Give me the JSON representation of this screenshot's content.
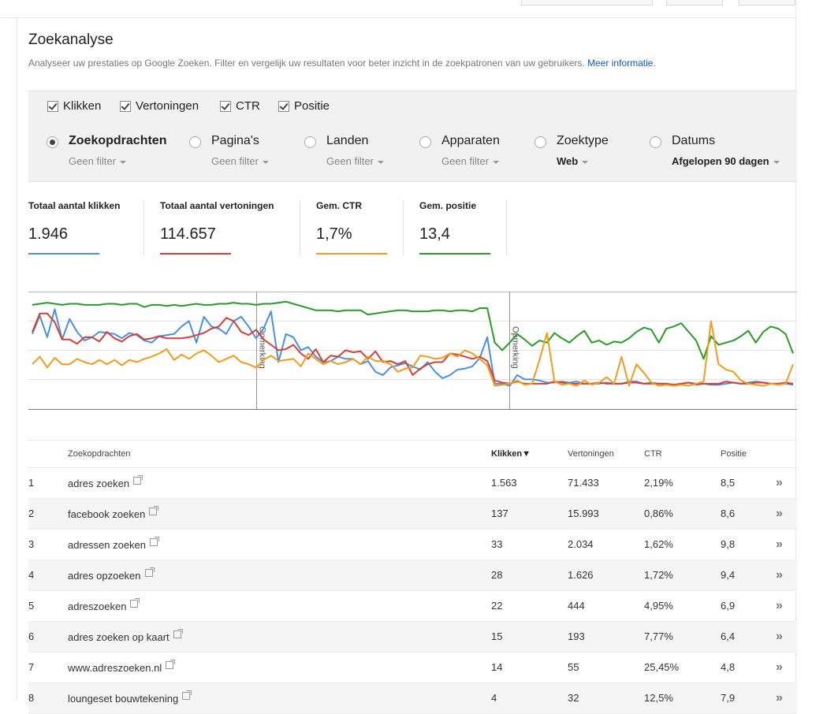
{
  "page": {
    "title": "Zoekanalyse",
    "description": "Analyseer uw prestaties op Google Zoeken. Filter en vergelijk uw resultaten voor beter inzicht in de zoekpatronen van uw gebruikers.",
    "more_info": "Meer informatie",
    "trailing_dot": "."
  },
  "metrics": [
    {
      "label": "Klikken",
      "checked": true
    },
    {
      "label": "Vertoningen",
      "checked": true
    },
    {
      "label": "CTR",
      "checked": true
    },
    {
      "label": "Positie",
      "checked": true
    }
  ],
  "dimensions": [
    {
      "label": "Zoekopdrachten",
      "filter": "Geen filter",
      "selected": true
    },
    {
      "label": "Pagina's",
      "filter": "Geen filter",
      "selected": false
    },
    {
      "label": "Landen",
      "filter": "Geen filter",
      "selected": false
    },
    {
      "label": "Apparaten",
      "filter": "Geen filter",
      "selected": false
    },
    {
      "label": "Zoektype",
      "filter": "Web",
      "selected": false
    },
    {
      "label": "Datums",
      "filter": "Afgelopen 90 dagen",
      "selected": false
    }
  ],
  "totals": [
    {
      "label": "Totaal aantal klikken",
      "value": "1.946",
      "color": "#4a90e2"
    },
    {
      "label": "Totaal aantal vertoningen",
      "value": "114.657",
      "color": "#d2403a"
    },
    {
      "label": "Gem. CTR",
      "value": "1,7%",
      "color": "#f29b1d"
    },
    {
      "label": "Gem. positie",
      "value": "13,4",
      "color": "#2a9a2a"
    }
  ],
  "chart_data": {
    "type": "line",
    "annotation_label": "Opmerking",
    "series": [
      {
        "color": "#2a9a2a",
        "values": [
          5,
          4,
          3,
          4,
          5,
          4,
          4,
          5,
          5,
          5,
          4,
          4,
          5,
          4,
          4,
          7,
          5,
          5,
          6,
          5,
          6,
          5,
          4,
          5,
          5,
          4,
          4,
          3,
          4,
          4,
          5,
          4,
          4,
          3,
          2,
          4,
          6,
          8,
          10,
          10,
          10,
          11,
          10,
          10,
          10,
          14,
          13,
          12,
          11,
          10,
          10,
          11,
          11,
          11,
          10,
          10,
          11,
          10,
          10,
          11,
          8,
          8,
          40,
          47,
          40,
          32,
          37,
          43,
          38,
          40,
          31,
          36,
          40,
          34,
          29,
          40,
          38,
          42,
          39,
          40,
          36,
          30,
          26,
          28,
          40,
          27,
          25,
          22,
          30,
          38,
          55,
          34,
          42,
          40,
          38,
          34,
          29,
          40,
          30,
          25,
          27,
          32,
          50
        ]
      },
      {
        "color": "#4a90e2",
        "values": [
          32,
          15,
          35,
          9,
          37,
          18,
          30,
          38,
          35,
          30,
          31,
          32,
          36,
          31,
          33,
          38,
          40,
          34,
          33,
          32,
          25,
          20,
          40,
          16,
          25,
          27,
          32,
          20,
          16,
          25,
          36,
          27,
          11,
          58,
          32,
          35,
          47,
          44,
          53,
          58,
          57,
          53,
          55,
          55,
          60,
          57,
          67,
          70,
          63,
          61,
          59,
          62,
          65,
          58,
          67,
          73,
          70,
          65,
          64,
          62,
          54,
          35,
          78,
          78,
          80,
          70,
          74,
          74,
          75,
          77,
          77,
          76,
          77,
          76,
          78,
          78,
          78,
          77,
          78,
          78,
          76,
          76,
          78,
          77,
          78,
          78,
          79,
          78,
          77,
          78,
          78,
          79,
          79,
          78,
          77,
          78,
          77,
          76,
          77,
          78,
          78,
          78,
          79
        ]
      },
      {
        "color": "#d2403a",
        "values": [
          30,
          13,
          13,
          21,
          37,
          37,
          41,
          35,
          35,
          39,
          30,
          36,
          39,
          34,
          32,
          37,
          36,
          34,
          36,
          36,
          36,
          35,
          33,
          31,
          27,
          25,
          17,
          20,
          30,
          33,
          28,
          37,
          42,
          47,
          46,
          42,
          50,
          55,
          46,
          58,
          52,
          53,
          47,
          49,
          48,
          55,
          48,
          58,
          57,
          60,
          57,
          70,
          64,
          60,
          58,
          58,
          50,
          51,
          53,
          55,
          53,
          57,
          75,
          77,
          78,
          76,
          78,
          78,
          78,
          78,
          76,
          77,
          78,
          78,
          78,
          78,
          77,
          78,
          78,
          78,
          77,
          77,
          78,
          78,
          78,
          78,
          79,
          78,
          77,
          79,
          78,
          78,
          78,
          76,
          77,
          78,
          78,
          77,
          77,
          78,
          78,
          77,
          78
        ]
      },
      {
        "color": "#f29b1d",
        "values": [
          60,
          53,
          63,
          54,
          60,
          60,
          55,
          58,
          60,
          56,
          60,
          56,
          61,
          56,
          58,
          55,
          53,
          50,
          46,
          56,
          51,
          55,
          50,
          47,
          52,
          58,
          55,
          52,
          58,
          60,
          63,
          56,
          52,
          57,
          56,
          55,
          62,
          50,
          55,
          60,
          57,
          60,
          58,
          55,
          60,
          53,
          57,
          57,
          60,
          67,
          64,
          63,
          52,
          53,
          55,
          54,
          50,
          53,
          47,
          50,
          55,
          61,
          80,
          79,
          78,
          75,
          79,
          78,
          56,
          31,
          76,
          79,
          78,
          80,
          75,
          79,
          77,
          72,
          78,
          53,
          80,
          60,
          68,
          77,
          80,
          79,
          80,
          79,
          80,
          78,
          76,
          20,
          60,
          65,
          67,
          75,
          78,
          79,
          80,
          78,
          79,
          78,
          60
        ]
      }
    ],
    "annotation_index": [
      15,
      32
    ],
    "ymax": 100
  },
  "table": {
    "headers": [
      "Zoekopdrachten",
      "Klikken▼",
      "Vertoningen",
      "CTR",
      "Positie"
    ],
    "more_icon": "»",
    "rows": [
      {
        "n": "1",
        "q": "adres zoeken",
        "k": "1.563",
        "v": "71.433",
        "c": "2,19%",
        "p": "8,5"
      },
      {
        "n": "2",
        "q": "facebook zoeken",
        "k": "137",
        "v": "15.993",
        "c": "0,86%",
        "p": "8,6"
      },
      {
        "n": "3",
        "q": "adressen zoeken",
        "k": "33",
        "v": "2.034",
        "c": "1,62%",
        "p": "9,8"
      },
      {
        "n": "4",
        "q": "adres opzoeken",
        "k": "28",
        "v": "1.626",
        "c": "1,72%",
        "p": "9,4"
      },
      {
        "n": "5",
        "q": "adreszoeken",
        "k": "22",
        "v": "444",
        "c": "4,95%",
        "p": "6,9"
      },
      {
        "n": "6",
        "q": "adres zoeken op kaart",
        "k": "15",
        "v": "193",
        "c": "7,77%",
        "p": "6,4"
      },
      {
        "n": "7",
        "q": "www.adreszoeken.nl",
        "k": "14",
        "v": "55",
        "c": "25,45%",
        "p": "4,8"
      },
      {
        "n": "8",
        "q": "loungeset bouwtekening",
        "k": "4",
        "v": "32",
        "c": "12,5%",
        "p": "7,9"
      }
    ]
  }
}
